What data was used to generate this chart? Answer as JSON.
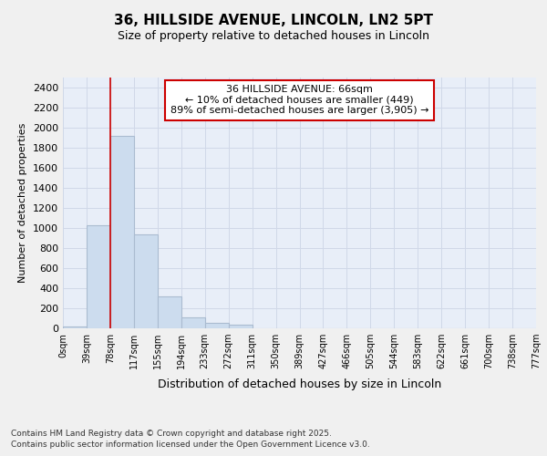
{
  "title_line1": "36, HILLSIDE AVENUE, LINCOLN, LN2 5PT",
  "title_line2": "Size of property relative to detached houses in Lincoln",
  "xlabel": "Distribution of detached houses by size in Lincoln",
  "ylabel": "Number of detached properties",
  "bin_labels": [
    "0sqm",
    "39sqm",
    "78sqm",
    "117sqm",
    "155sqm",
    "194sqm",
    "233sqm",
    "272sqm",
    "311sqm",
    "350sqm",
    "389sqm",
    "427sqm",
    "466sqm",
    "505sqm",
    "544sqm",
    "583sqm",
    "622sqm",
    "661sqm",
    "700sqm",
    "738sqm",
    "777sqm"
  ],
  "bar_values": [
    20,
    1030,
    1920,
    940,
    320,
    110,
    55,
    35,
    0,
    0,
    0,
    0,
    0,
    0,
    0,
    0,
    0,
    0,
    0,
    0
  ],
  "bar_color": "#ccdcee",
  "bar_edge_color": "#aabbd0",
  "property_line_x": 2.0,
  "property_line_color": "#cc0000",
  "annotation_text": "36 HILLSIDE AVENUE: 66sqm\n← 10% of detached houses are smaller (449)\n89% of semi-detached houses are larger (3,905) →",
  "annotation_box_color": "#ffffff",
  "annotation_box_edge_color": "#cc0000",
  "ylim": [
    0,
    2500
  ],
  "yticks": [
    0,
    200,
    400,
    600,
    800,
    1000,
    1200,
    1400,
    1600,
    1800,
    2000,
    2200,
    2400
  ],
  "grid_color": "#d0d8e8",
  "background_color": "#e8eef8",
  "fig_background": "#f0f0f0",
  "footer_line1": "Contains HM Land Registry data © Crown copyright and database right 2025.",
  "footer_line2": "Contains public sector information licensed under the Open Government Licence v3.0."
}
